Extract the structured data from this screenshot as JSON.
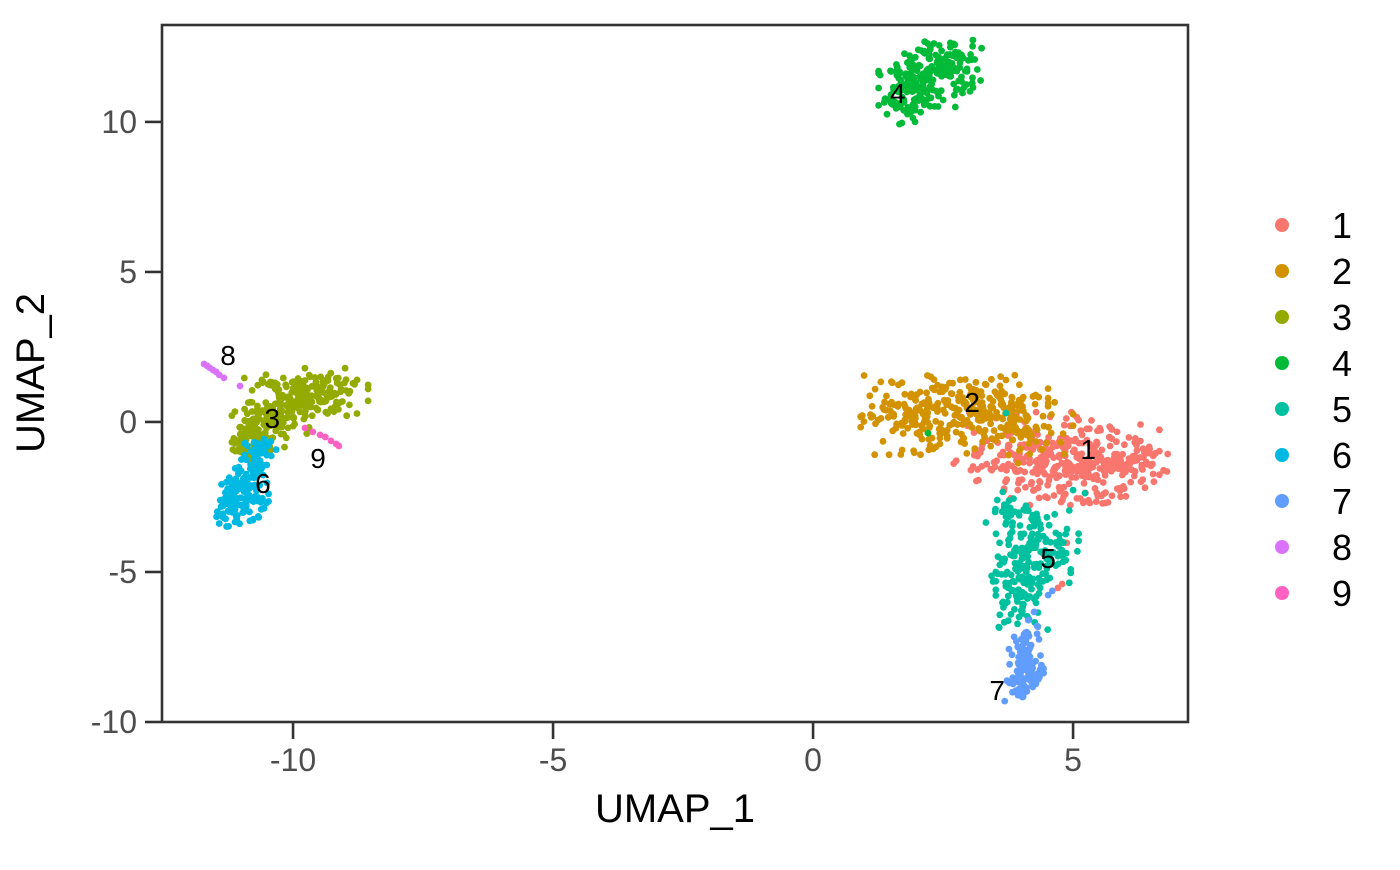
{
  "chart_data": {
    "type": "scatter",
    "title": "",
    "xlabel": "UMAP_1",
    "ylabel": "UMAP_2",
    "x_ticks": [
      -10,
      -5,
      0,
      5
    ],
    "y_ticks": [
      10,
      5,
      0,
      -5,
      -10
    ],
    "xlim": [
      -12.52,
      7.21
    ],
    "ylim": [
      -10.0,
      13.23
    ],
    "grid": false,
    "legend_position": "right",
    "legend_labels": [
      "1",
      "2",
      "3",
      "4",
      "5",
      "6",
      "7",
      "8",
      "9"
    ],
    "point_radius_px": 3.4,
    "colors": {
      "axis_text": "#4d4d4d",
      "axis_line": "#333333",
      "label_text": "#000000",
      "background": "#ffffff"
    },
    "clusters": [
      {
        "id": "1",
        "color": "#F8766D",
        "label": {
          "text": "1",
          "x": 5.29,
          "y": -0.9
        },
        "center": [
          4.75,
          -1.3
        ],
        "n_points_est": 410,
        "blobs": [
          [
            3.98,
            -1.1,
            0.58,
            0.65,
            140
          ],
          [
            5.23,
            -1.27,
            0.65,
            0.65,
            180
          ],
          [
            6.05,
            -1.43,
            0.35,
            0.5,
            60
          ],
          [
            5.13,
            -2.43,
            0.55,
            0.27,
            25
          ]
        ],
        "points": [
          [
            4.17,
            -2.77
          ],
          [
            4.88,
            -4.03
          ],
          [
            4.71,
            -5.53
          ],
          [
            4.79,
            -5.4
          ],
          [
            1.87,
            10.37
          ]
        ]
      },
      {
        "id": "2",
        "color": "#D39200",
        "label": {
          "text": "2",
          "x": 3.06,
          "y": 0.67
        },
        "center": [
          2.92,
          0.07
        ],
        "n_points_est": 360,
        "blobs": [
          [
            2.06,
            0.23,
            0.52,
            0.6,
            160
          ],
          [
            3.31,
            0.57,
            0.55,
            0.45,
            120
          ],
          [
            3.79,
            -0.27,
            0.55,
            0.5,
            80
          ]
        ],
        "points": []
      },
      {
        "id": "3",
        "color": "#93AA00",
        "label": {
          "text": "3",
          "x": -10.4,
          "y": 0.13
        },
        "center": [
          -9.96,
          0.4
        ],
        "n_points_est": 355,
        "blobs": [
          [
            -9.48,
            1.0,
            0.42,
            0.36,
            130
          ],
          [
            -10.15,
            0.4,
            0.29,
            0.43,
            90
          ],
          [
            -10.67,
            -0.27,
            0.23,
            0.43,
            90
          ],
          [
            -10.92,
            -0.77,
            0.15,
            0.27,
            30
          ],
          [
            -10.44,
            1.3,
            0.23,
            0.15,
            15
          ]
        ],
        "points": []
      },
      {
        "id": "4",
        "color": "#00BA38",
        "label": {
          "text": "4",
          "x": 1.63,
          "y": 10.97
        },
        "center": [
          2.13,
          11.33
        ],
        "n_points_est": 255,
        "blobs": [
          [
            2.25,
            11.47,
            0.45,
            0.52,
            150
          ],
          [
            1.77,
            10.9,
            0.23,
            0.46,
            60
          ],
          [
            2.63,
            12.0,
            0.27,
            0.33,
            40
          ]
        ],
        "points": [
          [
            1.92,
            10.13
          ],
          [
            1.96,
            10.0
          ],
          [
            2.21,
            -0.37
          ]
        ]
      },
      {
        "id": "5",
        "color": "#00C19F",
        "label": {
          "text": "5",
          "x": 4.52,
          "y": -4.53
        },
        "center": [
          4.13,
          -4.6
        ],
        "n_points_est": 245,
        "blobs": [
          [
            4.27,
            -4.27,
            0.38,
            0.6,
            120
          ],
          [
            4.02,
            -5.6,
            0.23,
            0.6,
            90
          ],
          [
            3.83,
            -3.0,
            0.23,
            0.33,
            30
          ]
        ],
        "points": [
          [
            5.0,
            -2.27
          ],
          [
            5.23,
            -2.37
          ],
          [
            3.71,
            0.3
          ]
        ]
      },
      {
        "id": "6",
        "color": "#00B9E3",
        "label": {
          "text": "6",
          "x": -10.58,
          "y": -2.03
        },
        "center": [
          -10.96,
          -2.43
        ],
        "n_points_est": 185,
        "blobs": [
          [
            -11.02,
            -2.67,
            0.25,
            0.37,
            110
          ],
          [
            -10.79,
            -1.6,
            0.17,
            0.4,
            50
          ],
          [
            -10.6,
            -1.0,
            0.15,
            0.2,
            25
          ]
        ],
        "points": []
      },
      {
        "id": "7",
        "color": "#619CFF",
        "label": {
          "text": "7",
          "x": 3.54,
          "y": -8.93
        },
        "center": [
          4.06,
          -8.2
        ],
        "n_points_est": 125,
        "blobs": [
          [
            4.06,
            -8.27,
            0.17,
            0.47,
            80
          ],
          [
            4.13,
            -7.33,
            0.12,
            0.33,
            25
          ],
          [
            4.0,
            -9.0,
            0.1,
            0.17,
            15
          ]
        ],
        "points": [
          [
            4.52,
            -5.77
          ],
          [
            4.6,
            -5.63
          ],
          [
            4.31,
            -6.8
          ],
          [
            4.25,
            -6.33
          ]
        ]
      },
      {
        "id": "8",
        "color": "#DB72FB",
        "label": {
          "text": "8",
          "x": -11.25,
          "y": 2.23
        },
        "center": [
          -11.52,
          1.67
        ],
        "n_points_est": 8,
        "blobs": [],
        "points": [
          [
            -11.71,
            1.93
          ],
          [
            -11.65,
            1.87
          ],
          [
            -11.6,
            1.8
          ],
          [
            -11.54,
            1.73
          ],
          [
            -11.48,
            1.67
          ],
          [
            -11.42,
            1.57
          ],
          [
            -11.33,
            1.47
          ],
          [
            -11.02,
            1.2
          ]
        ]
      },
      {
        "id": "9",
        "color": "#FF61C3",
        "label": {
          "text": "9",
          "x": -9.52,
          "y": -1.2
        },
        "center": [
          -9.44,
          -0.5
        ],
        "n_points_est": 7,
        "blobs": [],
        "points": [
          [
            -9.77,
            -0.2
          ],
          [
            -9.62,
            -0.33
          ],
          [
            -9.48,
            -0.43
          ],
          [
            -9.38,
            -0.5
          ],
          [
            -9.27,
            -0.63
          ],
          [
            -9.17,
            -0.73
          ],
          [
            -9.12,
            -0.8
          ]
        ]
      }
    ]
  }
}
